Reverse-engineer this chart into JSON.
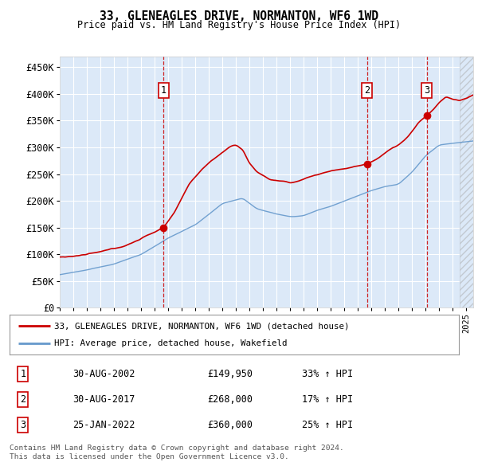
{
  "title": "33, GLENEAGLES DRIVE, NORMANTON, WF6 1WD",
  "subtitle": "Price paid vs. HM Land Registry's House Price Index (HPI)",
  "ylim": [
    0,
    470000
  ],
  "yticks": [
    0,
    50000,
    100000,
    150000,
    200000,
    250000,
    300000,
    350000,
    400000,
    450000
  ],
  "ytick_labels": [
    "£0",
    "£50K",
    "£100K",
    "£150K",
    "£200K",
    "£250K",
    "£300K",
    "£350K",
    "£400K",
    "£450K"
  ],
  "xlim_start": 1995.0,
  "xlim_end": 2025.5,
  "plot_bg_color": "#dce9f8",
  "grid_color": "#ffffff",
  "sales": [
    {
      "label": "1",
      "date": "30-AUG-2002",
      "price": 149950,
      "pct": "33%",
      "year": 2002.667
    },
    {
      "label": "2",
      "date": "30-AUG-2017",
      "price": 268000,
      "pct": "17%",
      "year": 2017.667
    },
    {
      "label": "3",
      "date": "25-JAN-2022",
      "price": 360000,
      "pct": "25%",
      "year": 2022.083
    }
  ],
  "legend_line1": "33, GLENEAGLES DRIVE, NORMANTON, WF6 1WD (detached house)",
  "legend_line2": "HPI: Average price, detached house, Wakefield",
  "footer1": "Contains HM Land Registry data © Crown copyright and database right 2024.",
  "footer2": "This data is licensed under the Open Government Licence v3.0.",
  "red_line_color": "#cc0000",
  "blue_line_color": "#6699cc"
}
